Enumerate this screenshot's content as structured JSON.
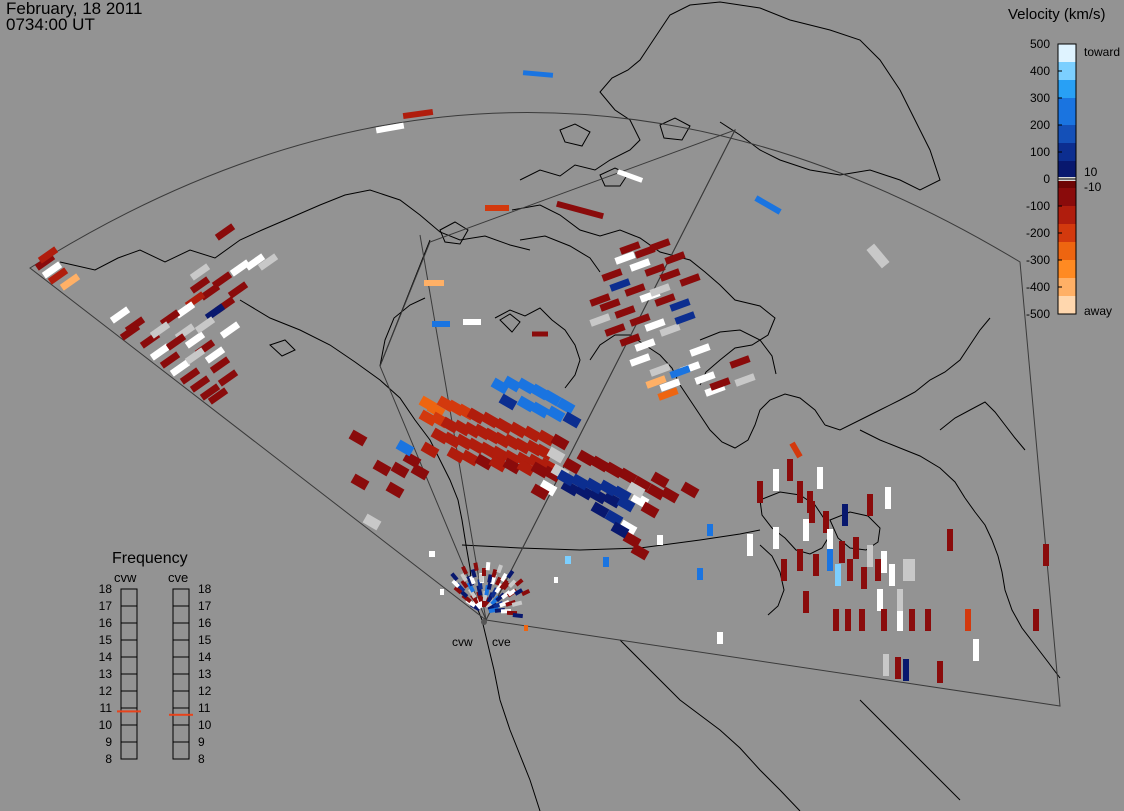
{
  "header": {
    "date": "February, 18 2011",
    "time": "0734:00 UT"
  },
  "velocity_legend": {
    "title": "Velocity (km/s)",
    "ticks": [
      "500",
      "400",
      "300",
      "200",
      "100",
      "0",
      "-100",
      "-200",
      "-300",
      "-400",
      "-500"
    ],
    "toward_label": "toward",
    "away_label": "away",
    "threshold_pos": "10",
    "threshold_neg": "-10",
    "colors_toward": [
      "#dff3ff",
      "#7ccfff",
      "#28a0f5",
      "#1a74e0",
      "#1450b8",
      "#0c2e90",
      "#08186e"
    ],
    "colors_away": [
      "#6e0505",
      "#8a0b0b",
      "#b01d0d",
      "#d3390d",
      "#ee6510",
      "#ff8a22",
      "#ffb066",
      "#ffd7ae"
    ]
  },
  "frequency_panel": {
    "title": "Frequency",
    "radars": [
      {
        "name": "cvw",
        "value_mhz": 10.8
      },
      {
        "name": "cve",
        "value_mhz": 10.6
      }
    ],
    "scale": [
      "18",
      "17",
      "16",
      "15",
      "14",
      "13",
      "12",
      "11",
      "10",
      "9",
      "8"
    ],
    "marker_color": "#e8431a"
  },
  "radar_sites": [
    {
      "name": "cvw"
    },
    {
      "name": "cve"
    }
  ],
  "map": {
    "background": "#939393",
    "coastline_color": "#000000",
    "fov_color": "#3a3a3a",
    "ground_scatter_color": "#bebebe"
  }
}
